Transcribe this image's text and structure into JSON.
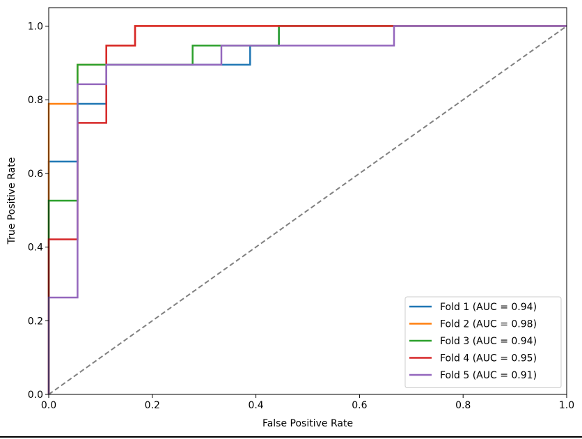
{
  "chart_data": {
    "type": "line",
    "title": "",
    "xlabel": "False Positive Rate",
    "ylabel": "True Positive Rate",
    "xlim": [
      0.0,
      1.0
    ],
    "ylim": [
      0.0,
      1.05
    ],
    "xticks": [
      0.0,
      0.2,
      0.4,
      0.6,
      0.8,
      1.0
    ],
    "yticks": [
      0.0,
      0.2,
      0.4,
      0.6,
      0.8,
      1.0
    ],
    "xtick_labels": [
      "0.0",
      "0.2",
      "0.4",
      "0.6",
      "0.8",
      "1.0"
    ],
    "ytick_labels": [
      "0.0",
      "0.2",
      "0.4",
      "0.6",
      "0.8",
      "1.0"
    ],
    "grid": false,
    "legend_position": "lower-right",
    "series": [
      {
        "name": "Fold 1 (AUC = 0.94)",
        "color": "#1f77b4",
        "x": [
          0,
          0,
          0,
          0.0556,
          0.0556,
          0.1111,
          0.1111,
          0.3889,
          0.3889,
          0.4444,
          0.4444,
          0.6667,
          0.6667,
          1.0
        ],
        "y": [
          0,
          0.263,
          0.632,
          0.632,
          0.789,
          0.789,
          0.895,
          0.895,
          0.947,
          0.947,
          1.0,
          1.0,
          1.0,
          1.0
        ]
      },
      {
        "name": "Fold 2 (AUC = 0.98)",
        "color": "#ff7f0e",
        "x": [
          0,
          0,
          0.0556,
          0.0556,
          0.1111,
          0.1111,
          0.1667,
          0.1667,
          1.0
        ],
        "y": [
          0,
          0.789,
          0.789,
          0.895,
          0.895,
          0.947,
          0.947,
          1.0,
          1.0
        ]
      },
      {
        "name": "Fold 3 (AUC = 0.94)",
        "color": "#2ca02c",
        "x": [
          0,
          0,
          0.0556,
          0.0556,
          0.2778,
          0.2778,
          0.4444,
          0.4444,
          1.0
        ],
        "y": [
          0,
          0.526,
          0.526,
          0.895,
          0.895,
          0.947,
          0.947,
          1.0,
          1.0
        ]
      },
      {
        "name": "Fold 4 (AUC = 0.95)",
        "color": "#d62728",
        "x": [
          0,
          0,
          0.0556,
          0.0556,
          0.1111,
          0.1111,
          0.1667,
          0.1667,
          1.0
        ],
        "y": [
          0,
          0.421,
          0.421,
          0.737,
          0.737,
          0.947,
          0.947,
          1.0,
          1.0
        ]
      },
      {
        "name": "Fold 5 (AUC = 0.91)",
        "color": "#9467bd",
        "x": [
          0,
          0,
          0.0556,
          0.0556,
          0.1111,
          0.1111,
          0.3333,
          0.3333,
          0.6667,
          0.6667,
          1.0
        ],
        "y": [
          0,
          0.263,
          0.263,
          0.842,
          0.842,
          0.895,
          0.895,
          0.947,
          0.947,
          1.0,
          1.0
        ]
      }
    ],
    "reference_line": {
      "name": "chance",
      "color": "#808080",
      "style": "dashed",
      "x": [
        0,
        1
      ],
      "y": [
        0,
        1
      ]
    }
  }
}
